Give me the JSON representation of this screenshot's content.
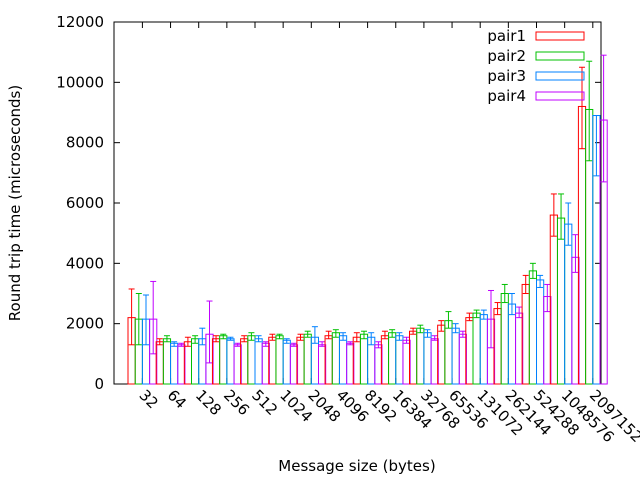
{
  "chart_data": {
    "type": "bar",
    "style": "clustered bars with error bars",
    "xlabel": "Message size (bytes)",
    "ylabel": "Round trip time (microseconds)",
    "ylim": [
      0,
      12000
    ],
    "yticks": [
      0,
      2000,
      4000,
      6000,
      8000,
      10000,
      12000
    ],
    "grid": false,
    "legend_position": "top-right",
    "categories": [
      "32",
      "64",
      "128",
      "256",
      "512",
      "1024",
      "2048",
      "4096",
      "8192",
      "16384",
      "32768",
      "65536",
      "131072",
      "262144",
      "524288",
      "1048576",
      "2097152"
    ],
    "series": [
      {
        "name": "pair1",
        "color": "#ff0000",
        "values": [
          2200,
          1400,
          1400,
          1500,
          1500,
          1550,
          1550,
          1600,
          1550,
          1600,
          1750,
          1950,
          2200,
          2500,
          3300,
          5600,
          9200
        ],
        "err_low": [
          1300,
          1300,
          1250,
          1400,
          1400,
          1450,
          1450,
          1500,
          1400,
          1500,
          1650,
          1750,
          2100,
          2300,
          3000,
          4900,
          7800
        ],
        "err_high": [
          3150,
          1500,
          1550,
          1600,
          1600,
          1650,
          1650,
          1750,
          1700,
          1750,
          1850,
          2100,
          2350,
          2700,
          3600,
          6300,
          10500
        ]
      },
      {
        "name": "pair2",
        "color": "#00c000",
        "values": [
          2150,
          1500,
          1500,
          1600,
          1600,
          1600,
          1650,
          1700,
          1650,
          1700,
          1850,
          2100,
          2350,
          3000,
          3750,
          5500,
          9100
        ],
        "err_low": [
          1300,
          1400,
          1350,
          1500,
          1450,
          1500,
          1550,
          1550,
          1500,
          1550,
          1700,
          1850,
          2200,
          2700,
          3500,
          4800,
          7400
        ],
        "err_high": [
          3000,
          1600,
          1600,
          1650,
          1700,
          1650,
          1750,
          1800,
          1750,
          1800,
          1950,
          2400,
          2450,
          3300,
          4000,
          6300,
          10700
        ]
      },
      {
        "name": "pair3",
        "color": "#0080ff",
        "values": [
          2150,
          1350,
          1500,
          1500,
          1500,
          1450,
          1550,
          1600,
          1550,
          1600,
          1700,
          1850,
          2300,
          2650,
          3450,
          5300,
          8900
        ],
        "err_low": [
          1300,
          1250,
          1300,
          1450,
          1400,
          1350,
          1350,
          1450,
          1300,
          1450,
          1550,
          1700,
          2150,
          2300,
          3200,
          4600,
          6900
        ],
        "err_high": [
          2950,
          1400,
          1850,
          1550,
          1600,
          1500,
          1900,
          1700,
          1700,
          1700,
          1800,
          2000,
          2450,
          3000,
          3600,
          6000,
          8900
        ]
      },
      {
        "name": "pair4",
        "color": "#c000ff",
        "values": [
          2150,
          1300,
          1650,
          1300,
          1350,
          1300,
          1300,
          1350,
          1300,
          1450,
          1500,
          1650,
          2150,
          2350,
          2900,
          4200,
          8750
        ],
        "err_low": [
          1000,
          1250,
          700,
          1250,
          1250,
          1250,
          1250,
          1300,
          1200,
          1350,
          1450,
          1550,
          1200,
          2200,
          2400,
          3700,
          6700
        ],
        "err_high": [
          3400,
          1350,
          2750,
          1350,
          1400,
          1350,
          1400,
          1400,
          1400,
          1550,
          1600,
          1750,
          3100,
          2550,
          3300,
          4950,
          10900
        ]
      }
    ]
  }
}
